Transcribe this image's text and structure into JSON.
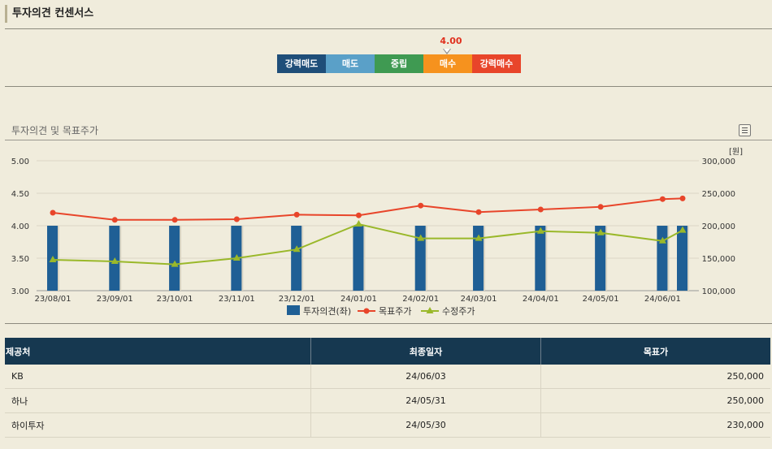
{
  "page": {
    "title": "투자의견 컨센서스"
  },
  "scale": {
    "marker_value": "4.00",
    "items": [
      {
        "label": "강력매도",
        "color": "#1f4e79"
      },
      {
        "label": "매도",
        "color": "#5aa0c8"
      },
      {
        "label": "중립",
        "color": "#3f9a52"
      },
      {
        "label": "매수",
        "color": "#f6921e"
      },
      {
        "label": "강력매수",
        "color": "#e8452a"
      }
    ]
  },
  "chart_title": "투자의견 및 목표주가",
  "chart_data": {
    "type": "bar",
    "categories": [
      "23/08/01",
      "23/09/01",
      "23/10/01",
      "23/11/01",
      "23/12/01",
      "24/01/01",
      "24/02/01",
      "24/03/01",
      "24/04/01",
      "24/05/01",
      "24/06/01"
    ],
    "left_axis": {
      "ylim": [
        3.0,
        5.0
      ],
      "ticks": [
        "3.00",
        "3.50",
        "4.00",
        "4.50",
        "5.00"
      ]
    },
    "right_axis": {
      "unit": "[원]",
      "ylim": [
        100000,
        300000
      ],
      "ticks": [
        "100,000",
        "150,000",
        "200,000",
        "250,000",
        "300,000"
      ]
    },
    "series": [
      {
        "name": "투자의견(좌)",
        "type": "bar",
        "axis": "left",
        "color": "#1f5f95",
        "x": [
          "23/08/01",
          "23/09/01",
          "23/10/01",
          "23/11/01",
          "23/12/01",
          "24/01/01",
          "24/02/01",
          "24/03/01",
          "24/04/01",
          "24/05/01",
          "24/06/01",
          "24/06/11"
        ],
        "values": [
          4.0,
          4.0,
          4.0,
          4.0,
          4.0,
          4.0,
          4.0,
          4.0,
          4.0,
          4.0,
          4.0,
          4.0
        ]
      },
      {
        "name": "목표주가",
        "type": "line",
        "axis": "right",
        "color": "#e8452a",
        "x": [
          "23/08/01",
          "23/09/01",
          "23/10/01",
          "23/11/01",
          "23/12/01",
          "24/01/01",
          "24/02/01",
          "24/03/01",
          "24/04/01",
          "24/05/01",
          "24/06/01",
          "24/06/11"
        ],
        "values": [
          220000,
          209000,
          209000,
          210000,
          217000,
          216000,
          231000,
          221000,
          225000,
          229000,
          241000,
          242000
        ]
      },
      {
        "name": "수정주가",
        "type": "line",
        "axis": "right",
        "color": "#9ab82a",
        "x": [
          "23/08/01",
          "23/09/01",
          "23/10/01",
          "23/11/01",
          "23/12/01",
          "24/01/01",
          "24/02/01",
          "24/03/01",
          "24/04/01",
          "24/05/01",
          "24/06/01",
          "24/06/11"
        ],
        "values": [
          147500,
          145000,
          140500,
          150000,
          163500,
          202500,
          180500,
          180500,
          191500,
          189000,
          176500,
          193000
        ]
      }
    ],
    "legend_position": "bottom-center",
    "grid": true
  },
  "table": {
    "headers": [
      "제공처",
      "최종일자",
      "목표가"
    ],
    "rows": [
      [
        "KB",
        "24/06/03",
        "250,000"
      ],
      [
        "하나",
        "24/05/31",
        "250,000"
      ],
      [
        "하이투자",
        "24/05/30",
        "230,000"
      ]
    ]
  }
}
